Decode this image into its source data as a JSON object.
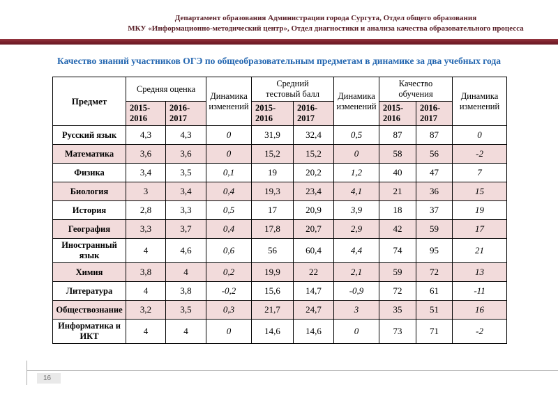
{
  "header": {
    "line1": "Департамент образования Администрации города Сургута, Отдел общего образования",
    "line2": "МКУ «Информационно-методический центр», Отдел диагностики и анализа качества образовательного процесса"
  },
  "title": "Качество знаний участников ОГЭ по общеобразовательным предметам в динамике за два учебных года",
  "footer": {
    "page_number": "16"
  },
  "colors": {
    "maroon_bar": "#7a1f2b",
    "header_text": "#5a2028",
    "title_blue": "#2366b0",
    "row_pink": "#f2dbdb"
  },
  "table": {
    "headers": {
      "subject": "Предмет",
      "group_avg_grade": "Средняя оценка",
      "group_avg_score": "Средний\nтестовый балл",
      "group_quality": "Качество\nобучения",
      "dynamics": "Динамика\nизменений",
      "year1": "2015-\n2016",
      "year2": "2016-\n2017"
    },
    "rows": [
      {
        "subject": "Русский язык",
        "values": [
          "4,3",
          "4,3",
          "0",
          "31,9",
          "32,4",
          "0,5",
          "87",
          "87",
          "0"
        ]
      },
      {
        "subject": "Математика",
        "values": [
          "3,6",
          "3,6",
          "0",
          "15,2",
          "15,2",
          "0",
          "58",
          "56",
          "-2"
        ]
      },
      {
        "subject": "Физика",
        "values": [
          "3,4",
          "3,5",
          "0,1",
          "19",
          "20,2",
          "1,2",
          "40",
          "47",
          "7"
        ]
      },
      {
        "subject": "Биология",
        "values": [
          "3",
          "3,4",
          "0,4",
          "19,3",
          "23,4",
          "4,1",
          "21",
          "36",
          "15"
        ]
      },
      {
        "subject": "История",
        "values": [
          "2,8",
          "3,3",
          "0,5",
          "17",
          "20,9",
          "3,9",
          "18",
          "37",
          "19"
        ]
      },
      {
        "subject": "География",
        "values": [
          "3,3",
          "3,7",
          "0,4",
          "17,8",
          "20,7",
          "2,9",
          "42",
          "59",
          "17"
        ]
      },
      {
        "subject": "Иностранный язык",
        "values": [
          "4",
          "4,6",
          "0,6",
          "56",
          "60,4",
          "4,4",
          "74",
          "95",
          "21"
        ]
      },
      {
        "subject": "Химия",
        "values": [
          "3,8",
          "4",
          "0,2",
          "19,9",
          "22",
          "2,1",
          "59",
          "72",
          "13"
        ]
      },
      {
        "subject": "Литература",
        "values": [
          "4",
          "3,8",
          "-0,2",
          "15,6",
          "14,7",
          "-0,9",
          "72",
          "61",
          "-11"
        ]
      },
      {
        "subject": "Обществознание",
        "values": [
          "3,2",
          "3,5",
          "0,3",
          "21,7",
          "24,7",
          "3",
          "35",
          "51",
          "16"
        ]
      },
      {
        "subject": "Информатика и ИКТ",
        "values": [
          "4",
          "4",
          "0",
          "14,6",
          "14,6",
          "0",
          "73",
          "71",
          "-2"
        ]
      }
    ]
  }
}
